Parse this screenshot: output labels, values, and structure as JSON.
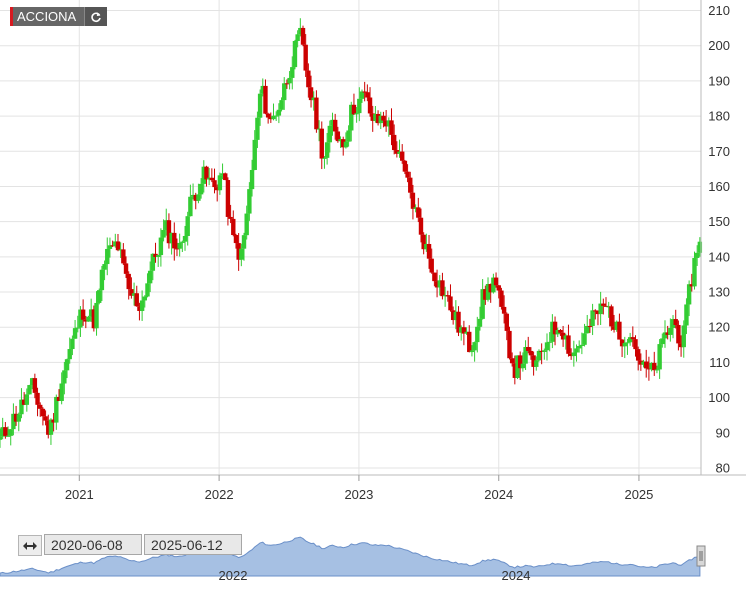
{
  "ticker": {
    "label": "ACCIONA"
  },
  "date_range": {
    "start": "2020-06-08",
    "end": "2025-06-12"
  },
  "colors": {
    "up": "#33cc33",
    "down": "#cc0000",
    "navigator_fill": "#a6c0e3",
    "navigator_line": "#6a8fc8"
  },
  "navigator": {
    "tick_labels": [
      "2022",
      "2024"
    ]
  },
  "chart_data": {
    "type": "candlestick",
    "xlabel": "",
    "ylabel": "",
    "x_range": [
      "2020-06-08",
      "2025-06-12"
    ],
    "ylim": [
      78,
      213
    ],
    "x_tick_labels": [
      "2021",
      "2022",
      "2023",
      "2024",
      "2025"
    ],
    "y_tick_labels": [
      80,
      90,
      100,
      110,
      120,
      130,
      140,
      150,
      160,
      170,
      180,
      190,
      200,
      210
    ],
    "grid": true,
    "y_axis_position": "right",
    "close_path": [
      [
        "2020-06-08",
        88
      ],
      [
        "2020-07-20",
        95
      ],
      [
        "2020-09-01",
        103
      ],
      [
        "2020-10-15",
        90
      ],
      [
        "2020-11-20",
        107
      ],
      [
        "2020-12-20",
        118
      ],
      [
        "2021-01-10",
        125
      ],
      [
        "2021-02-10",
        122
      ],
      [
        "2021-03-10",
        140
      ],
      [
        "2021-04-10",
        144
      ],
      [
        "2021-05-10",
        130
      ],
      [
        "2021-06-10",
        126
      ],
      [
        "2021-07-10",
        138
      ],
      [
        "2021-08-15",
        148
      ],
      [
        "2021-09-20",
        142
      ],
      [
        "2021-10-20",
        156
      ],
      [
        "2021-11-20",
        163
      ],
      [
        "2021-12-20",
        160
      ],
      [
        "2022-01-10",
        164
      ],
      [
        "2022-02-05",
        145
      ],
      [
        "2022-03-01",
        140
      ],
      [
        "2022-03-25",
        162
      ],
      [
        "2022-04-20",
        188
      ],
      [
        "2022-05-15",
        178
      ],
      [
        "2022-06-10",
        184
      ],
      [
        "2022-07-10",
        196
      ],
      [
        "2022-08-01",
        203
      ],
      [
        "2022-08-20",
        190
      ],
      [
        "2022-09-10",
        180
      ],
      [
        "2022-10-01",
        168
      ],
      [
        "2022-10-25",
        178
      ],
      [
        "2022-11-20",
        172
      ],
      [
        "2022-12-15",
        182
      ],
      [
        "2023-01-15",
        186
      ],
      [
        "2023-02-10",
        178
      ],
      [
        "2023-03-10",
        180
      ],
      [
        "2023-04-10",
        170
      ],
      [
        "2023-05-10",
        160
      ],
      [
        "2023-06-10",
        148
      ],
      [
        "2023-07-10",
        137
      ],
      [
        "2023-08-10",
        130
      ],
      [
        "2023-09-10",
        122
      ],
      [
        "2023-10-20",
        114
      ],
      [
        "2023-11-20",
        128
      ],
      [
        "2023-12-20",
        134
      ],
      [
        "2024-01-15",
        121
      ],
      [
        "2024-02-10",
        108
      ],
      [
        "2024-03-10",
        112
      ],
      [
        "2024-04-10",
        109
      ],
      [
        "2024-05-10",
        118
      ],
      [
        "2024-06-10",
        121
      ],
      [
        "2024-07-10",
        112
      ],
      [
        "2024-08-10",
        117
      ],
      [
        "2024-09-10",
        124
      ],
      [
        "2024-10-10",
        126
      ],
      [
        "2024-11-10",
        117
      ],
      [
        "2024-12-10",
        119
      ],
      [
        "2025-01-10",
        108
      ],
      [
        "2025-02-10",
        107
      ],
      [
        "2025-03-05",
        116
      ],
      [
        "2025-04-01",
        122
      ],
      [
        "2025-04-25",
        115
      ],
      [
        "2025-05-15",
        132
      ],
      [
        "2025-06-12",
        148
      ]
    ]
  }
}
